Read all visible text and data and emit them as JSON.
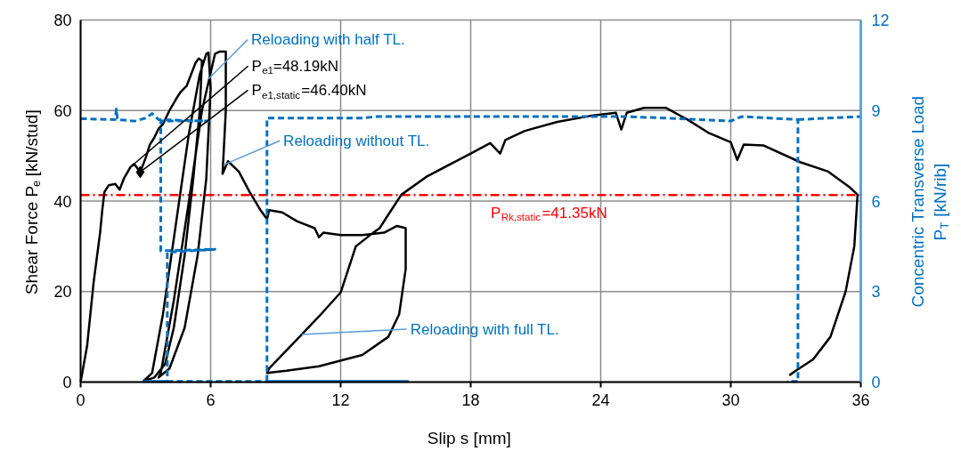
{
  "chart_data": {
    "type": "line",
    "xlabel": "Slip s [mm]",
    "ylabel": "Shear Force P$_{e}$ [kN/stud]",
    "y2label": "Concentric Transverse Load P$_{T}$ [kN/rib]",
    "xlim": [
      0,
      36
    ],
    "xticks": [
      0,
      6,
      12,
      18,
      24,
      30,
      36
    ],
    "ylim": [
      0,
      80
    ],
    "yticks": [
      0,
      20,
      40,
      60,
      80
    ],
    "y2lim": [
      0,
      12
    ],
    "y2ticks": [
      0,
      3,
      6,
      9,
      12
    ],
    "grid": true,
    "series": [
      {
        "type": "line",
        "color": "#000000",
        "line_style": "solid",
        "x": [
          0,
          0.3,
          0.6,
          0.9,
          1.0,
          1.1,
          1.3,
          1.6,
          1.8,
          2.0,
          2.3,
          2.47,
          2.75,
          3.0,
          3.2,
          3.4,
          3.6,
          3.8,
          4.1,
          4.4,
          4.6,
          4.9,
          5.1,
          5.3,
          5.45,
          5.6,
          5.5,
          5.2,
          4.8,
          4.3,
          3.9,
          3.4,
          2.9,
          3.3,
          3.8,
          4.4,
          5.0,
          5.5,
          5.8,
          5.9,
          6.0,
          5.8,
          5.4,
          4.8,
          4.1,
          3.6,
          3.7,
          4.3,
          5.0,
          5.6,
          6.2,
          6.4,
          6.7,
          6.7,
          6.55,
          6.8,
          7.3,
          7.8,
          8.3,
          8.6,
          8.7,
          9.3,
          10,
          10.8,
          11.0,
          11.2,
          12,
          13,
          14,
          14.6,
          15,
          15,
          14.7,
          14.2,
          13,
          11,
          9.5,
          8.6,
          8.7,
          9.5,
          10.2,
          11,
          12,
          12.7,
          13.5,
          13.8,
          14.2,
          14.8,
          16,
          18,
          18.9,
          19.36,
          19.6,
          20.5,
          22,
          23.5,
          24.7,
          24.95,
          25.2,
          26,
          27,
          28,
          29,
          30.0,
          30.3,
          30.6,
          31.5,
          33.2,
          34.5,
          35.5,
          35.85,
          35.7,
          35.3,
          34.6,
          33.8,
          33,
          32.7
        ],
        "values": [
          0,
          8,
          22,
          33,
          38,
          42,
          43.5,
          43.8,
          42.5,
          45,
          47.5,
          48.2,
          46.4,
          49.5,
          52.5,
          54,
          56,
          57,
          60,
          62.5,
          64,
          65.5,
          68,
          70.5,
          71.5,
          71,
          60,
          45,
          28,
          12,
          4,
          1,
          0.2,
          2,
          15,
          35,
          55,
          68,
          72.5,
          72.8,
          65,
          45,
          28,
          12,
          3,
          1,
          2,
          18,
          40,
          60,
          72.5,
          73,
          73,
          60,
          46,
          48.8,
          46.5,
          42,
          38,
          36,
          38,
          37.5,
          35.5,
          34,
          32,
          33,
          32.5,
          32.5,
          33,
          34.5,
          34,
          25,
          15,
          10,
          6,
          3.5,
          2.5,
          2,
          3,
          7,
          10.5,
          14.5,
          19.8,
          30,
          33,
          34,
          37,
          41.4,
          45.5,
          50.5,
          52.8,
          50.5,
          53.5,
          55.5,
          57.5,
          58.8,
          59.5,
          55.8,
          59.5,
          60.6,
          60.6,
          58,
          55,
          53,
          49.1,
          52.5,
          52.3,
          48.6,
          46.5,
          43,
          41.4,
          30,
          20,
          10,
          5,
          2.5,
          1.5
        ]
      },
      {
        "axis": "y2",
        "color": "#0070c0",
        "line_style": "dashed",
        "x": [
          0,
          1.6,
          1.65,
          1.7,
          2.5,
          3.0,
          3.3,
          3.6,
          5.9,
          3.7,
          3.7,
          6.2,
          4.0,
          4.0,
          2.9,
          15.1,
          8.6,
          8.6,
          13,
          13.7,
          19,
          25,
          27,
          30,
          30.5,
          33.1,
          33.1,
          32.6,
          null,
          33.1,
          36
        ],
        "values": [
          8.73,
          8.7,
          9.05,
          8.7,
          8.65,
          8.75,
          8.9,
          8.7,
          8.65,
          8.65,
          4.35,
          4.4,
          4.3,
          0.02,
          0.02,
          0.02,
          0.02,
          8.75,
          8.75,
          8.8,
          8.8,
          8.8,
          8.75,
          8.65,
          8.8,
          8.7,
          0.02,
          0.02,
          null,
          8.7,
          8.8
        ]
      },
      {
        "type": "scatter",
        "marker": "diamond",
        "color": "#000000",
        "x": [
          2.75
        ],
        "values": [
          46.4
        ]
      }
    ],
    "ref_lines": [
      {
        "axis": "y",
        "value": 41.35,
        "label": "P$_{Rk,static}$=41.35kN",
        "color": "#ff0000",
        "line_style": "dashdot"
      }
    ],
    "annotations": [
      {
        "text": "Reloading with half TL.",
        "x": 5.9,
        "y": 67
      },
      {
        "text": "P$_{e1}$=48.19kN",
        "x": 2.47,
        "y": 48.2
      },
      {
        "text": "P$_{e1,static}$=46.40kN",
        "x": 2.75,
        "y": 46.4
      },
      {
        "text": "Reloading without TL.",
        "x": 6.6,
        "y": 48
      },
      {
        "text": "Reloading with full TL.",
        "x": 10.2,
        "y": 10.5
      }
    ]
  }
}
